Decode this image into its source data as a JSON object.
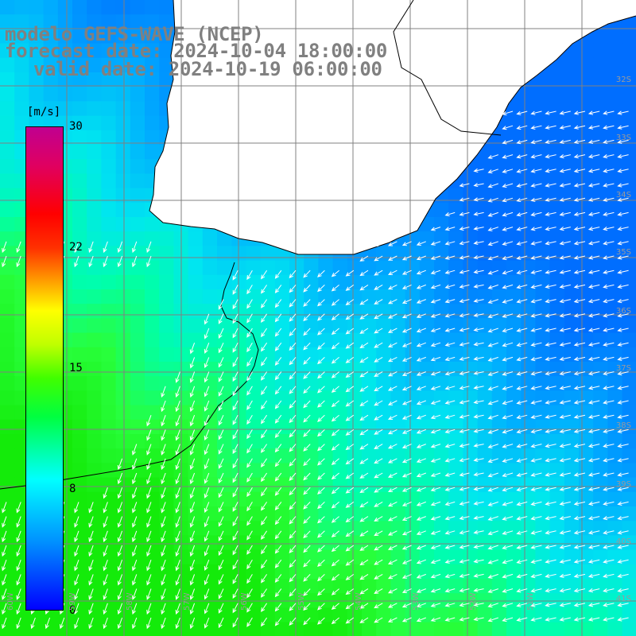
{
  "header": {
    "line1": "modelo GEFS-WAVE (NCEP)",
    "line2": "forecast date: 2024-10-04 18:00:00",
    "line3": "valid date: 2024-10-19 06:00:00"
  },
  "colorbar": {
    "unit": "[m/s]",
    "ticks": [
      "30",
      "22",
      "15",
      "8",
      "0"
    ],
    "colors": [
      "#0000ff",
      "#0090ff",
      "#00ffff",
      "#00ff40",
      "#ffff00",
      "#ff0000",
      "#c00090"
    ]
  },
  "map": {
    "lat_labels": [
      "32S",
      "33S",
      "34S",
      "35S",
      "36S",
      "37S",
      "38S",
      "39S",
      "40S",
      "41S"
    ],
    "lon_labels": [
      "60W",
      "59W",
      "58W",
      "57W",
      "56W",
      "55W",
      "54W",
      "53W",
      "52W",
      "51W"
    ],
    "land_color": "#ffffff",
    "coast_color": "#000000",
    "grid_color": "#808080",
    "arrow_color": "#ffffff"
  }
}
